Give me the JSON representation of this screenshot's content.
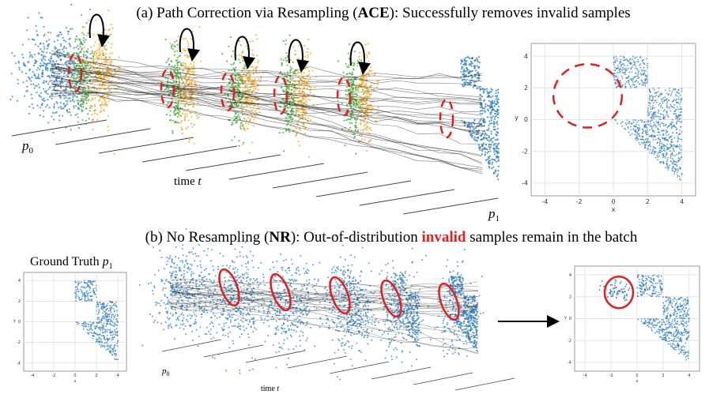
{
  "panel_a": {
    "caption": {
      "prefix": "(a) Path Correction via Resampling (",
      "bold": "ACE",
      "suffix": "): Successfully removes invalid samples"
    },
    "p0": {
      "p": "p",
      "sub": "0"
    },
    "time": {
      "word": "time ",
      "var": "t"
    },
    "p1": {
      "p": "p",
      "sub": "1"
    }
  },
  "panel_b": {
    "caption": {
      "prefix": "(b) No Resampling (",
      "bold": "NR",
      "middle": "): Out-of-distribution ",
      "red": "invalid",
      "suffix": " samples remain in the batch"
    },
    "ground_truth": {
      "text": "Ground Truth ",
      "p": "p",
      "sub": "1"
    },
    "p0": {
      "p": "p",
      "sub": "0"
    },
    "time": {
      "word": "time ",
      "var": "t"
    }
  },
  "axes": {
    "xticks": [
      "-4",
      "-2",
      "0",
      "2",
      "4"
    ],
    "yticks": [
      "4",
      "2",
      "0",
      "-2",
      "-4"
    ],
    "xlabel": "x",
    "ylabel": "y"
  }
}
